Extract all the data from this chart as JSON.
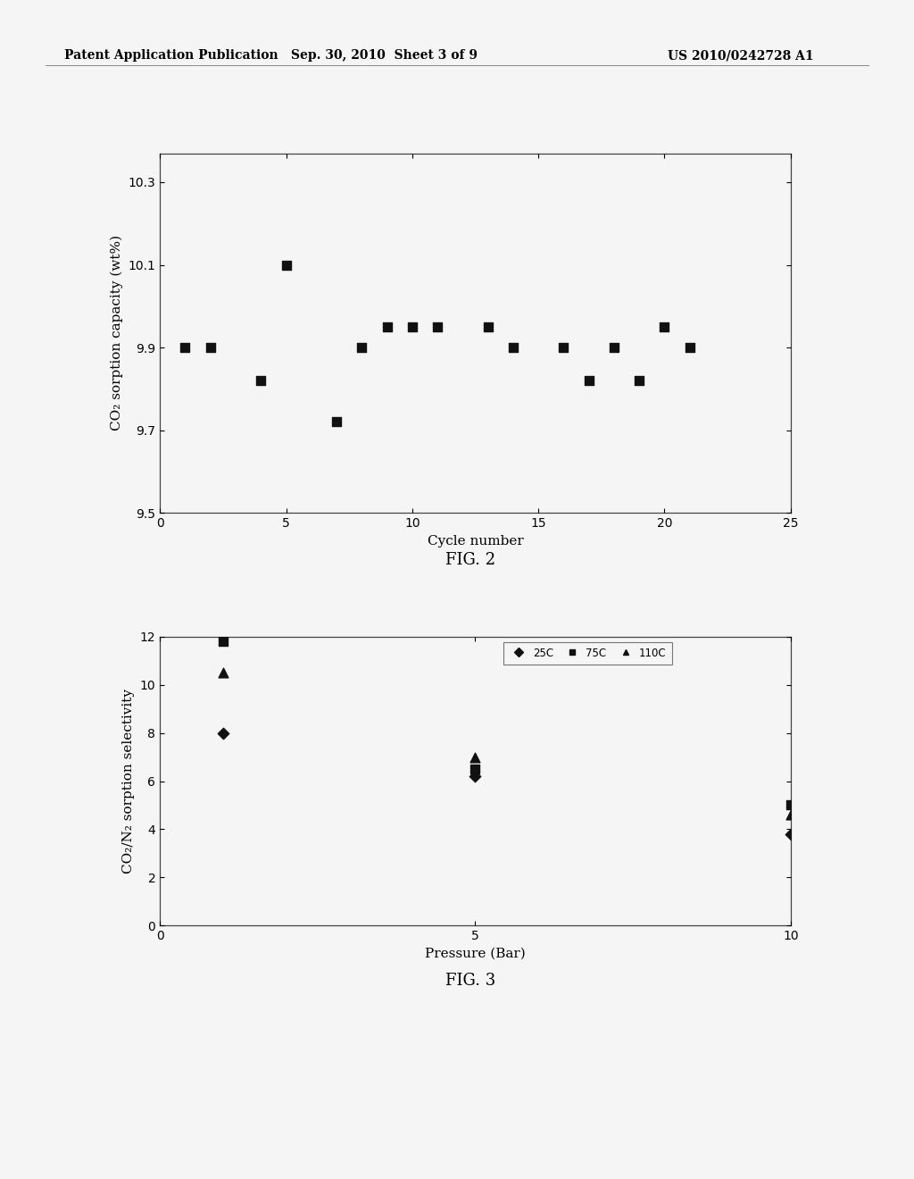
{
  "fig2": {
    "title": "FIG. 2",
    "xlabel": "Cycle number",
    "ylabel": "CO₂ sorption capacity (wt%)",
    "xlim": [
      0,
      25
    ],
    "ylim": [
      9.5,
      10.37
    ],
    "yticks": [
      9.5,
      9.7,
      9.9,
      10.1,
      10.3
    ],
    "xticks": [
      0,
      5,
      10,
      15,
      20,
      25
    ],
    "scatter_x": [
      1,
      2,
      4,
      5,
      7,
      8,
      9,
      10,
      11,
      13,
      14,
      16,
      17,
      18,
      19,
      20,
      21
    ],
    "scatter_y": [
      9.9,
      9.9,
      9.82,
      10.1,
      9.72,
      9.9,
      9.95,
      9.95,
      9.95,
      9.95,
      9.9,
      9.9,
      9.82,
      9.9,
      9.82,
      9.95,
      9.9
    ],
    "marker": "s",
    "color": "#111111"
  },
  "fig3": {
    "title": "FIG. 3",
    "xlabel": "Pressure (Bar)",
    "ylabel": "CO₂/N₂ sorption selectivity",
    "xlim": [
      0,
      10
    ],
    "ylim": [
      0,
      12
    ],
    "yticks": [
      0,
      2,
      4,
      6,
      8,
      10,
      12
    ],
    "xticks": [
      0,
      5,
      10
    ],
    "series": [
      {
        "label": "25C",
        "marker": "D",
        "color": "#111111",
        "x": [
          1,
          5,
          10
        ],
        "y": [
          8.0,
          6.2,
          3.8
        ]
      },
      {
        "label": "75C",
        "marker": "s",
        "color": "#111111",
        "x": [
          1,
          5,
          10
        ],
        "y": [
          11.8,
          6.5,
          5.0
        ]
      },
      {
        "label": "110C",
        "marker": "^",
        "color": "#111111",
        "x": [
          1,
          5,
          10
        ],
        "y": [
          10.5,
          7.0,
          4.6
        ]
      }
    ]
  },
  "header_left": "Patent Application Publication",
  "header_center": "Sep. 30, 2010  Sheet 3 of 9",
  "header_right": "US 2010/0242728 A1",
  "bg_color": "#f5f5f5",
  "text_color": "#000000",
  "font_size": 11,
  "tick_fontsize": 10,
  "title_font_size": 13
}
